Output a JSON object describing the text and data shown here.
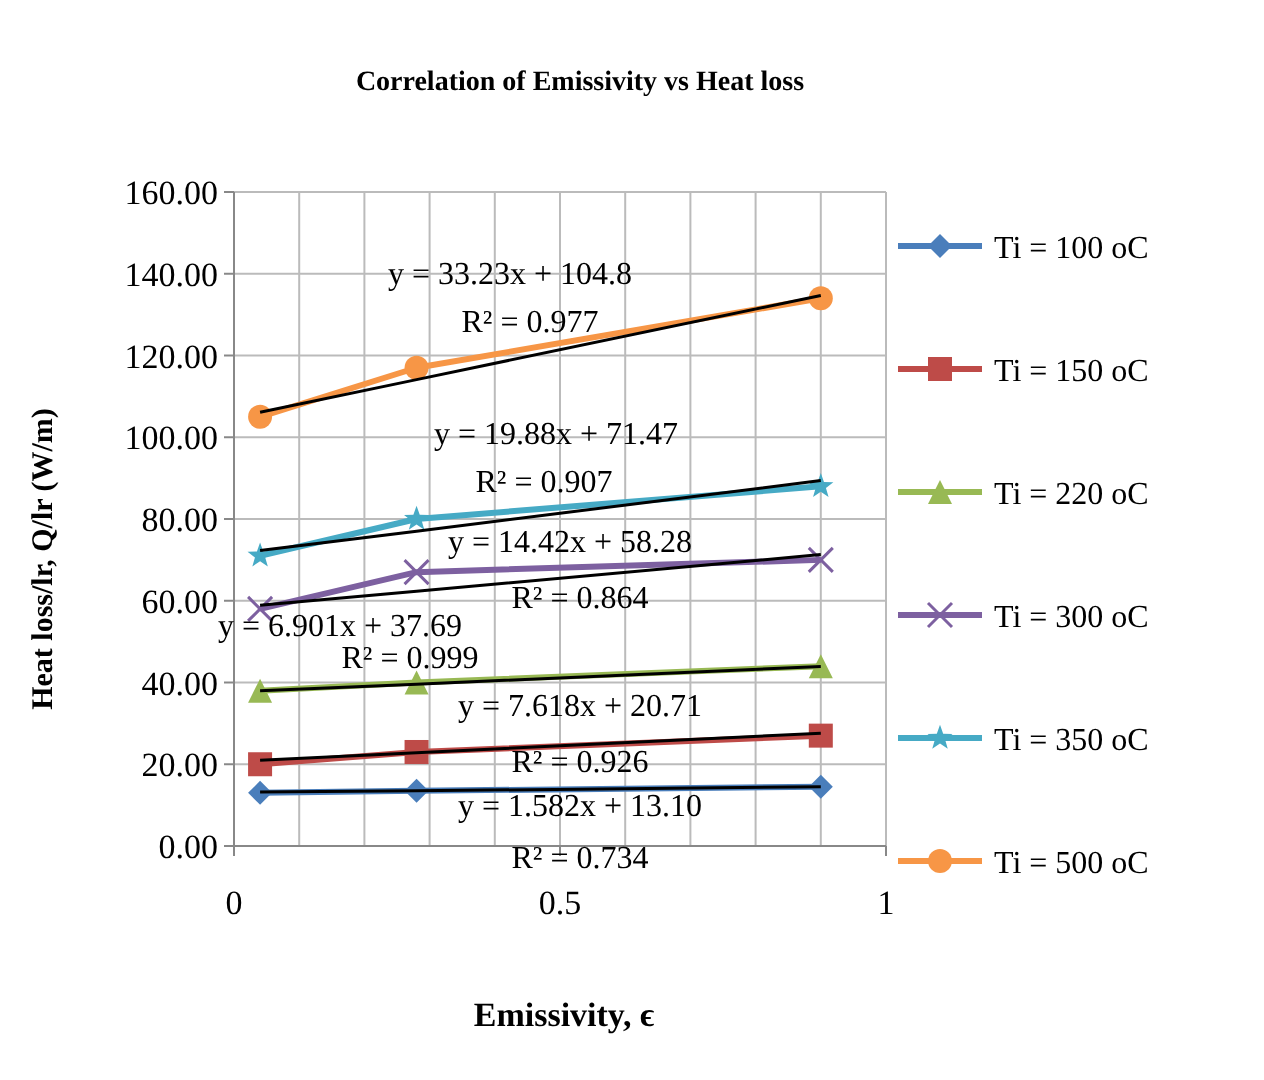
{
  "chart_data": {
    "type": "line",
    "title": "Correlation of Emissivity vs Heat loss",
    "xlabel": "Emissivity, ϵ",
    "ylabel": "Heat loss/lr, Q/lr (W/m)",
    "x": [
      0.04,
      0.28,
      0.9
    ],
    "xlim": [
      0,
      1
    ],
    "xticks": [
      0,
      {
        "value": 0.1,
        "label": null
      },
      {
        "value": 0.2,
        "label": null
      },
      {
        "value": 0.3,
        "label": null
      },
      {
        "value": 0.4,
        "label": null
      },
      0.5,
      {
        "value": 0.6,
        "label": null
      },
      {
        "value": 0.7,
        "label": null
      },
      {
        "value": 0.8,
        "label": null
      },
      {
        "value": 0.9,
        "label": null
      },
      1
    ],
    "ylim": [
      0,
      160
    ],
    "yticks": [
      {
        "value": 0,
        "label": "0.00"
      },
      {
        "value": 20,
        "label": "20.00"
      },
      {
        "value": 40,
        "label": "40.00"
      },
      {
        "value": 60,
        "label": "60.00"
      },
      {
        "value": 80,
        "label": "80.00"
      },
      {
        "value": 100,
        "label": "100.00"
      },
      {
        "value": 120,
        "label": "120.00"
      },
      {
        "value": 140,
        "label": "140.00"
      },
      {
        "value": 160,
        "label": "160.00"
      }
    ],
    "grid": true,
    "legend": "right",
    "line_style": "solid",
    "series": [
      {
        "name": "Ti = 100 oC",
        "color": "#4a7ebb",
        "marker": "diamond",
        "values": [
          13,
          13.5,
          14.5
        ]
      },
      {
        "name": "Ti = 150 oC",
        "color": "#be4b48",
        "marker": "square",
        "values": [
          20,
          23,
          27
        ]
      },
      {
        "name": "Ti = 220 oC",
        "color": "#98b954",
        "marker": "triangle",
        "values": [
          38,
          40,
          44
        ]
      },
      {
        "name": "Ti = 300 oC",
        "color": "#7d60a0",
        "marker": "cross",
        "values": [
          58,
          67,
          70
        ]
      },
      {
        "name": "Ti = 350 oC",
        "color": "#46aac5",
        "marker": "star",
        "values": [
          71,
          80,
          88
        ]
      },
      {
        "name": "Ti = 500 oC",
        "color": "#f79646",
        "marker": "circle",
        "values": [
          105,
          117,
          134
        ]
      },
      {
        "type": "line",
        "color": "#000000",
        "marker": "none",
        "values": [
          13.2,
          13.5,
          14.5
        ]
      },
      {
        "type": "line",
        "color": "#000000",
        "marker": "none",
        "values": [
          21.0,
          22.8,
          27.6
        ]
      },
      {
        "type": "line",
        "color": "#000000",
        "marker": "none",
        "values": [
          38.0,
          39.6,
          43.9
        ]
      },
      {
        "type": "line",
        "color": "#000000",
        "marker": "none",
        "values": [
          58.9,
          62.3,
          71.3
        ]
      },
      {
        "type": "line",
        "color": "#000000",
        "marker": "none",
        "values": [
          72.3,
          77.0,
          89.4
        ]
      },
      {
        "type": "line",
        "color": "#000000",
        "marker": "none",
        "values": [
          106.1,
          114.1,
          134.7
        ]
      }
    ],
    "annotations": [
      "y = 33.23x + 104.8",
      "R² = 0.977",
      "y = 19.88x + 71.47",
      "R² = 0.907",
      "y = 14.42x + 58.28",
      "R² = 0.864",
      "y = 6.901x + 37.69",
      "R² = 0.999",
      "y = 7.618x + 20.71",
      "R² = 0.926",
      "y = 1.582x + 13.10",
      "R² = 0.734"
    ]
  }
}
